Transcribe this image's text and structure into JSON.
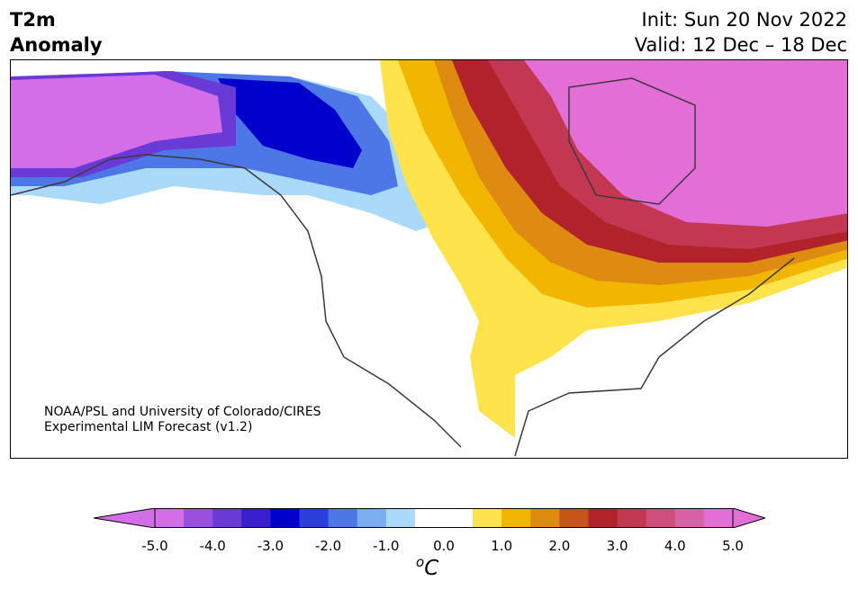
{
  "title": {
    "line1": "T2m",
    "line2": "Anomaly"
  },
  "dates": {
    "init": "Init: Sun 20 Nov 2022",
    "valid": "Valid: 12 Dec – 18 Dec"
  },
  "credit": {
    "line1": "NOAA/PSL and University of Colorado/CIRES",
    "line2": "Experimental LIM Forecast (v1.2)"
  },
  "colorbar": {
    "colors": [
      "#d46ee8",
      "#9b4fe0",
      "#6a3ad6",
      "#3a1ed0",
      "#0000cd",
      "#2a3fdb",
      "#4d76e6",
      "#79aef0",
      "#aad9fa",
      "#ffffff",
      "#ffffff",
      "#ffe34d",
      "#f2b600",
      "#df8a10",
      "#c65416",
      "#b1222a",
      "#c33752",
      "#d04e7b",
      "#d862a7",
      "#e36ed6"
    ],
    "ticks": [
      "-5.0",
      "-4.0",
      "-3.0",
      "-2.0",
      "-1.0",
      "0.0",
      "1.0",
      "2.0",
      "3.0",
      "4.0",
      "5.0"
    ],
    "unit_sup": "o",
    "unit": "C",
    "extend": "both"
  }
}
